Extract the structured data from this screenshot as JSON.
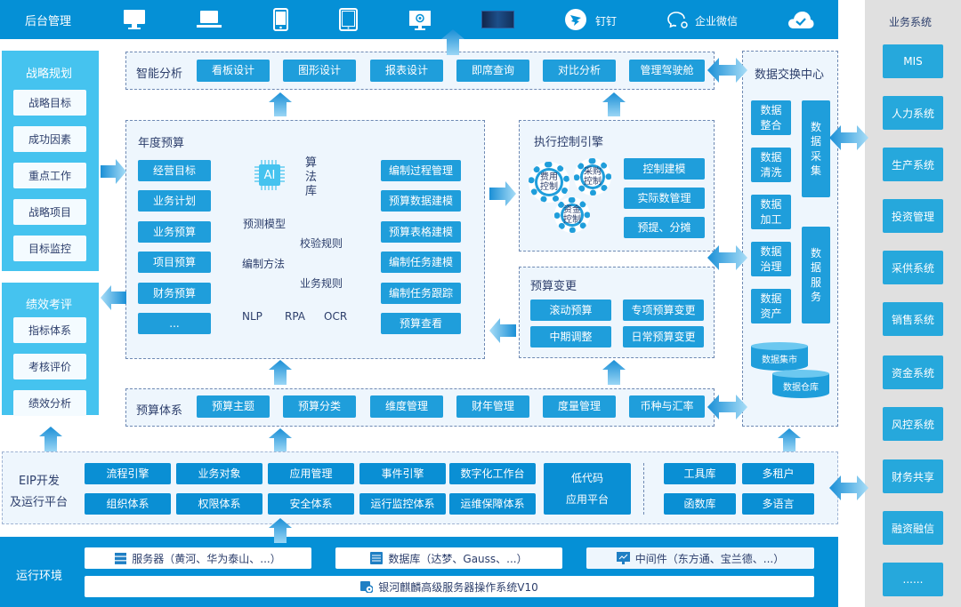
{
  "top_bar": {
    "title": "后台管理",
    "dingtalk": "钉钉",
    "wecom": "企业微信",
    "icons": [
      "desktop-icon",
      "laptop-icon",
      "phone-icon",
      "tablet-icon",
      "screen-icon",
      "dashboard-thumbnail",
      "dingtalk-icon",
      "wecom-icon",
      "cloud-check-icon"
    ]
  },
  "strategy": {
    "title": "战略规划",
    "items": [
      "战略目标",
      "成功因素",
      "重点工作",
      "战略项目",
      "目标监控"
    ]
  },
  "performance": {
    "title": "绩效考评",
    "items": [
      "指标体系",
      "考核评价",
      "绩效分析"
    ]
  },
  "smart_analysis": {
    "title": "智能分析",
    "items": [
      "看板设计",
      "图形设计",
      "报表设计",
      "即席查询",
      "对比分析",
      "管理驾驶舱"
    ]
  },
  "annual_budget": {
    "title": "年度预算",
    "left": [
      "经营目标",
      "业务计划",
      "业务预算",
      "项目预算",
      "财务预算",
      "..."
    ],
    "right": [
      "编制过程管理",
      "预算数据建模",
      "预算表格建模",
      "编制任务建模",
      "编制任务跟踪",
      "预算查看"
    ],
    "ai": "AI",
    "algo_lib": "算法库",
    "center": {
      "forecast": "预测模型",
      "validation": "校验规则",
      "method": "编制方法",
      "business_rules": "业务规则",
      "nlp": "NLP",
      "rpa": "RPA",
      "ocr": "OCR"
    }
  },
  "execution": {
    "title": "执行控制引擎",
    "gears": [
      "费用控制",
      "采购控制",
      "资金控制"
    ],
    "items": [
      "控制建模",
      "实际数管理",
      "预提、分摊"
    ]
  },
  "change": {
    "title": "预算变更",
    "items": [
      "滚动预算",
      "专项预算变更",
      "中期调整",
      "日常预算变更"
    ]
  },
  "budget_system": {
    "title": "预算体系",
    "items": [
      "预算主题",
      "预算分类",
      "维度管理",
      "财年管理",
      "度量管理",
      "币种与汇率"
    ]
  },
  "data_exchange": {
    "title": "数据交换中心",
    "small": [
      "数据整合",
      "数据清洗",
      "数据加工",
      "数据治理",
      "数据资产"
    ],
    "collect": "数据采集",
    "service": "数据服务",
    "mart": "数据集市",
    "warehouse": "数据仓库"
  },
  "eip": {
    "title1": "EIP开发",
    "title2": "及运行平台",
    "row1": [
      "流程引擎",
      "业务对象",
      "应用管理",
      "事件引擎",
      "数字化工作台"
    ],
    "row2": [
      "组织体系",
      "权限体系",
      "安全体系",
      "运行监控体系",
      "运维保障体系"
    ],
    "lowcode1": "低代码",
    "lowcode2": "应用平台",
    "tools": [
      "工具库",
      "多租户",
      "函数库",
      "多语言"
    ]
  },
  "runtime": {
    "title": "运行环境",
    "server": "服务器（黄河、华为泰山、...）",
    "database": "数据库（达梦、Gauss、...）",
    "middleware": "中间件（东方通、宝兰德、...）",
    "os": "银河麒麟高级服务器操作系统V10"
  },
  "business_systems": {
    "title": "业务系统",
    "items": [
      "MIS",
      "人力系统",
      "生产系统",
      "投资管理",
      "采供系统",
      "销售系统",
      "资金系统",
      "风控系统",
      "财务共享",
      "融资融信",
      "......"
    ]
  },
  "colors": {
    "primary": "#0590d6",
    "button": "#1f9edb",
    "panel": "#eef6fd",
    "side": "#45c3ef",
    "right_panel": "#e0e0e0"
  }
}
